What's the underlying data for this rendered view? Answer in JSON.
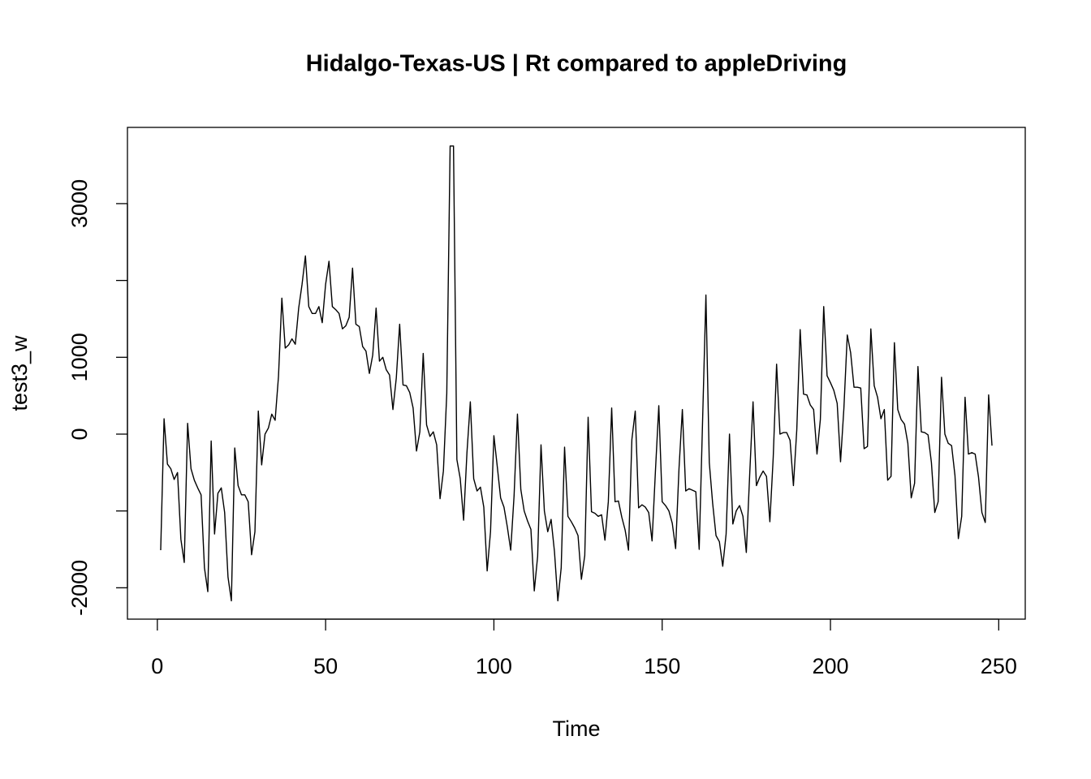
{
  "chart_data": {
    "type": "line",
    "title": "Hidalgo-Texas-US | Rt compared to appleDriving",
    "x_label": "Time",
    "y_label": "test3_w",
    "color": "#000000",
    "x": [
      1,
      2,
      3,
      4,
      5,
      6,
      7,
      8,
      9,
      10,
      11,
      12,
      13,
      14,
      15,
      16,
      17,
      18,
      19,
      20,
      21,
      22,
      23,
      24,
      25,
      26,
      27,
      28,
      29,
      30,
      31,
      32,
      33,
      34,
      35,
      36,
      37,
      38,
      39,
      40,
      41,
      42,
      43,
      44,
      45,
      46,
      47,
      48,
      49,
      50,
      51,
      52,
      53,
      54,
      55,
      56,
      57,
      58,
      59,
      60,
      61,
      62,
      63,
      64,
      65,
      66,
      67,
      68,
      69,
      70,
      71,
      72,
      73,
      74,
      75,
      76,
      77,
      78,
      79,
      80,
      81,
      82,
      83,
      84,
      85,
      86,
      87,
      88,
      89,
      90,
      91,
      92,
      93,
      94,
      95,
      96,
      97,
      98,
      99,
      100,
      101,
      102,
      103,
      104,
      105,
      106,
      107,
      108,
      109,
      110,
      111,
      112,
      113,
      114,
      115,
      116,
      117,
      118,
      119,
      120,
      121,
      122,
      123,
      124,
      125,
      126,
      127,
      128,
      129,
      130,
      131,
      132,
      133,
      134,
      135,
      136,
      137,
      138,
      139,
      140,
      141,
      142,
      143,
      144,
      145,
      146,
      147,
      148,
      149,
      150,
      151,
      152,
      153,
      154,
      155,
      156,
      157,
      158,
      159,
      160,
      161,
      162,
      163,
      164,
      165,
      166,
      167,
      168,
      169,
      170,
      171,
      172,
      173,
      174,
      175,
      176,
      177,
      178,
      179,
      180,
      181,
      182,
      183,
      184,
      185,
      186,
      187,
      188,
      189,
      190,
      191,
      192,
      193,
      194,
      195,
      196,
      197,
      198,
      199,
      200,
      201,
      202,
      203,
      204,
      205,
      206,
      207,
      208,
      209,
      210,
      211,
      212,
      213,
      214,
      215,
      216,
      217,
      218,
      219,
      220,
      221,
      222,
      223,
      224,
      225,
      226,
      227,
      228,
      229,
      230,
      231,
      232,
      233,
      234,
      235,
      236,
      237,
      238,
      239,
      240,
      241,
      242,
      243,
      244,
      245,
      246,
      247,
      248
    ],
    "values": [
      -1510,
      200,
      -390,
      -450,
      -590,
      -500,
      -1370,
      -1670,
      140,
      -450,
      -600,
      -700,
      -790,
      -1740,
      -2050,
      -90,
      -1300,
      -770,
      -700,
      -1020,
      -1860,
      -2170,
      -180,
      -670,
      -790,
      -790,
      -880,
      -1570,
      -1270,
      300,
      -400,
      0,
      80,
      260,
      180,
      750,
      1770,
      1120,
      1160,
      1240,
      1170,
      1640,
      1950,
      2320,
      1660,
      1570,
      1570,
      1660,
      1450,
      1950,
      2250,
      1660,
      1620,
      1570,
      1370,
      1410,
      1520,
      2160,
      1430,
      1400,
      1140,
      1080,
      790,
      1030,
      1640,
      950,
      1000,
      840,
      770,
      320,
      730,
      1430,
      640,
      630,
      540,
      340,
      -220,
      30,
      1050,
      120,
      -30,
      30,
      -140,
      -840,
      -480,
      530,
      3750,
      3750,
      -330,
      -580,
      -1120,
      -240,
      420,
      -580,
      -740,
      -690,
      -950,
      -1780,
      -1270,
      -20,
      -420,
      -830,
      -950,
      -1210,
      -1510,
      -800,
      260,
      -720,
      -1000,
      -1130,
      -1240,
      -2040,
      -1590,
      -140,
      -1000,
      -1270,
      -1110,
      -1530,
      -2170,
      -1740,
      -170,
      -1070,
      -1140,
      -1220,
      -1320,
      -1890,
      -1580,
      220,
      -1010,
      -1030,
      -1070,
      -1050,
      -1380,
      -880,
      340,
      -880,
      -870,
      -1080,
      -1250,
      -1510,
      -70,
      300,
      -960,
      -920,
      -950,
      -1020,
      -1390,
      -480,
      370,
      -880,
      -930,
      -1000,
      -1160,
      -1490,
      -450,
      320,
      -740,
      -710,
      -730,
      -750,
      -1500,
      160,
      1810,
      -370,
      -900,
      -1320,
      -1400,
      -1720,
      -1300,
      0,
      -1170,
      -1000,
      -930,
      -1070,
      -1540,
      -530,
      420,
      -670,
      -560,
      -480,
      -550,
      -1140,
      -300,
      910,
      0,
      20,
      20,
      -80,
      -670,
      60,
      1360,
      520,
      510,
      380,
      320,
      -260,
      190,
      1660,
      760,
      670,
      570,
      400,
      -360,
      340,
      1290,
      1060,
      610,
      610,
      600,
      -190,
      -160,
      1370,
      630,
      480,
      200,
      320,
      -600,
      -550,
      1190,
      320,
      190,
      130,
      -120,
      -830,
      -640,
      880,
      30,
      20,
      -10,
      -370,
      -1020,
      -880,
      740,
      0,
      -120,
      -150,
      -540,
      -1360,
      -1070,
      480,
      -260,
      -240,
      -260,
      -560,
      -1020,
      -1150,
      510,
      -150
    ],
    "xlim": [
      -8.88,
      257.88
    ],
    "ylim": [
      -2408,
      3992
    ],
    "xticks": [
      0,
      50,
      100,
      150,
      200,
      250
    ],
    "yticks": [
      -2000,
      {
        "value": -1000,
        "label": null
      },
      0,
      1000,
      {
        "value": 2000,
        "label": null
      },
      3000
    ]
  }
}
